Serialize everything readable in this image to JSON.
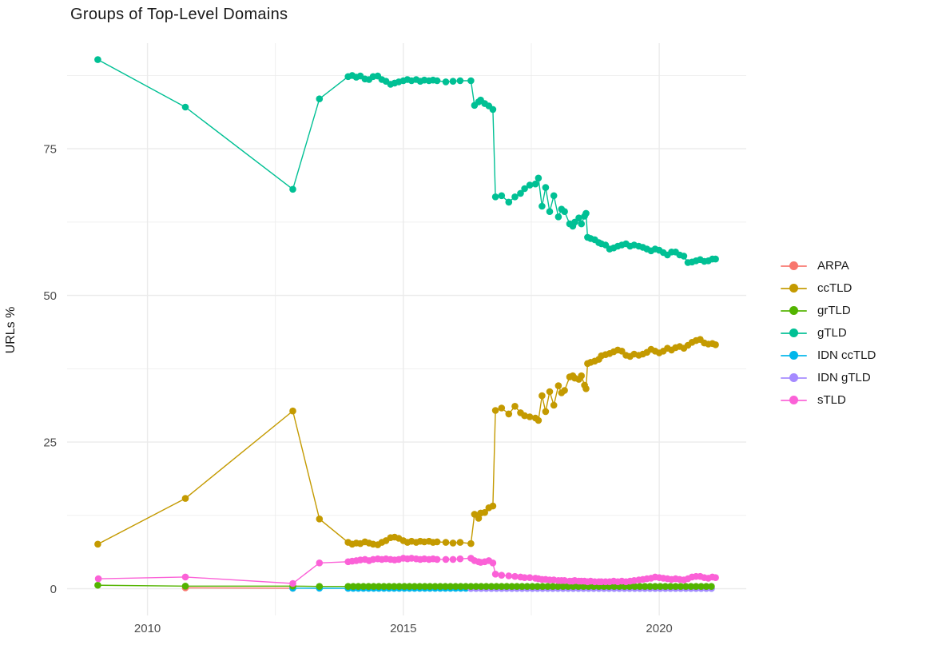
{
  "chart_data": {
    "type": "scatter",
    "title": "Groups of Top-Level Domains",
    "xlabel": "",
    "ylabel": "URLs %",
    "background": "#FFFFFF",
    "grid": true,
    "grid_color": "#EBEBEB",
    "axis_text_color": "#4D4D4D",
    "title_color": "#1A1A1A",
    "legend_position": "right",
    "x_domain": [
      2008.43,
      2021.7
    ],
    "y_domain": [
      -4.55,
      93.0
    ],
    "x_ticks": {
      "major": [
        2010,
        2015,
        2020
      ],
      "minor": [
        2012.5,
        2017.5
      ]
    },
    "y_ticks": {
      "major": [
        0,
        25,
        50,
        75
      ],
      "minor": [
        12.5,
        37.5,
        62.5,
        87.5
      ]
    },
    "series": [
      {
        "name": "ARPA",
        "color": "#F8766D",
        "points": [
          [
            2010.74,
            0.15
          ],
          [
            2012.84,
            0.1
          ]
        ]
      },
      {
        "name": "ccTLD",
        "color": "#C49A00",
        "points": [
          [
            2009.03,
            7.6
          ],
          [
            2010.74,
            15.4
          ],
          [
            2012.84,
            30.3
          ],
          [
            2013.36,
            11.9
          ],
          [
            2013.92,
            7.9
          ],
          [
            2014.0,
            7.6
          ],
          [
            2014.08,
            7.8
          ],
          [
            2014.16,
            7.7
          ],
          [
            2014.25,
            8.0
          ],
          [
            2014.33,
            7.8
          ],
          [
            2014.41,
            7.6
          ],
          [
            2014.5,
            7.5
          ],
          [
            2014.58,
            7.9
          ],
          [
            2014.66,
            8.2
          ],
          [
            2014.75,
            8.7
          ],
          [
            2014.83,
            8.8
          ],
          [
            2014.91,
            8.6
          ],
          [
            2015.0,
            8.2
          ],
          [
            2015.08,
            7.9
          ],
          [
            2015.16,
            8.1
          ],
          [
            2015.25,
            7.9
          ],
          [
            2015.33,
            8.1
          ],
          [
            2015.41,
            8.0
          ],
          [
            2015.5,
            8.1
          ],
          [
            2015.58,
            7.9
          ],
          [
            2015.66,
            8.0
          ],
          [
            2015.83,
            7.9
          ],
          [
            2015.97,
            7.8
          ],
          [
            2016.11,
            7.9
          ],
          [
            2016.32,
            7.7
          ],
          [
            2016.39,
            12.7
          ],
          [
            2016.47,
            12.0
          ],
          [
            2016.51,
            12.9
          ],
          [
            2016.59,
            13.0
          ],
          [
            2016.67,
            13.8
          ],
          [
            2016.75,
            14.1
          ],
          [
            2016.8,
            30.4
          ],
          [
            2016.92,
            30.8
          ],
          [
            2017.06,
            29.8
          ],
          [
            2017.18,
            31.1
          ],
          [
            2017.29,
            30.0
          ],
          [
            2017.37,
            29.5
          ],
          [
            2017.47,
            29.3
          ],
          [
            2017.58,
            29.1
          ],
          [
            2017.64,
            28.7
          ],
          [
            2017.71,
            32.9
          ],
          [
            2017.78,
            30.2
          ],
          [
            2017.86,
            33.6
          ],
          [
            2017.94,
            31.3
          ],
          [
            2018.03,
            34.6
          ],
          [
            2018.09,
            33.4
          ],
          [
            2018.15,
            33.8
          ],
          [
            2018.25,
            36.1
          ],
          [
            2018.31,
            36.3
          ],
          [
            2018.35,
            35.9
          ],
          [
            2018.43,
            35.7
          ],
          [
            2018.48,
            36.3
          ],
          [
            2018.54,
            34.7
          ],
          [
            2018.57,
            34.1
          ],
          [
            2018.6,
            38.4
          ],
          [
            2018.66,
            38.6
          ],
          [
            2018.74,
            38.8
          ],
          [
            2018.82,
            39.1
          ],
          [
            2018.87,
            39.7
          ],
          [
            2018.95,
            39.9
          ],
          [
            2019.03,
            40.1
          ],
          [
            2019.11,
            40.4
          ],
          [
            2019.19,
            40.7
          ],
          [
            2019.27,
            40.5
          ],
          [
            2019.35,
            39.8
          ],
          [
            2019.43,
            39.6
          ],
          [
            2019.51,
            40.0
          ],
          [
            2019.6,
            39.8
          ],
          [
            2019.68,
            40.0
          ],
          [
            2019.76,
            40.3
          ],
          [
            2019.84,
            40.8
          ],
          [
            2019.92,
            40.5
          ],
          [
            2020.0,
            40.2
          ],
          [
            2020.08,
            40.5
          ],
          [
            2020.16,
            41.0
          ],
          [
            2020.24,
            40.7
          ],
          [
            2020.32,
            41.1
          ],
          [
            2020.4,
            41.3
          ],
          [
            2020.48,
            41.0
          ],
          [
            2020.56,
            41.5
          ],
          [
            2020.64,
            42.0
          ],
          [
            2020.72,
            42.3
          ],
          [
            2020.8,
            42.5
          ],
          [
            2020.88,
            41.9
          ],
          [
            2020.96,
            41.7
          ],
          [
            2021.04,
            41.8
          ],
          [
            2021.1,
            41.6
          ]
        ]
      },
      {
        "name": "grTLD",
        "color": "#53B400",
        "points": [
          [
            2009.03,
            0.6
          ],
          [
            2010.74,
            0.45
          ],
          [
            2012.84,
            0.45
          ],
          [
            2013.36,
            0.4
          ]
        ],
        "spans": [
          {
            "from": 2013.92,
            "to": 2021.1,
            "step": 0.1,
            "value": 0.4
          }
        ]
      },
      {
        "name": "gTLD",
        "color": "#00C094",
        "points": [
          [
            2009.03,
            90.2
          ],
          [
            2010.74,
            82.1
          ],
          [
            2012.84,
            68.1
          ],
          [
            2013.36,
            83.5
          ],
          [
            2013.92,
            87.3
          ],
          [
            2014.0,
            87.5
          ],
          [
            2014.08,
            87.2
          ],
          [
            2014.16,
            87.4
          ],
          [
            2014.25,
            86.9
          ],
          [
            2014.33,
            86.8
          ],
          [
            2014.41,
            87.3
          ],
          [
            2014.5,
            87.4
          ],
          [
            2014.58,
            86.8
          ],
          [
            2014.66,
            86.5
          ],
          [
            2014.75,
            86.0
          ],
          [
            2014.83,
            86.2
          ],
          [
            2014.91,
            86.4
          ],
          [
            2015.0,
            86.6
          ],
          [
            2015.08,
            86.8
          ],
          [
            2015.16,
            86.6
          ],
          [
            2015.25,
            86.8
          ],
          [
            2015.33,
            86.5
          ],
          [
            2015.41,
            86.7
          ],
          [
            2015.5,
            86.6
          ],
          [
            2015.58,
            86.7
          ],
          [
            2015.66,
            86.6
          ],
          [
            2015.83,
            86.4
          ],
          [
            2015.97,
            86.5
          ],
          [
            2016.11,
            86.6
          ],
          [
            2016.32,
            86.6
          ],
          [
            2016.39,
            82.4
          ],
          [
            2016.47,
            83.0
          ],
          [
            2016.51,
            83.3
          ],
          [
            2016.59,
            82.7
          ],
          [
            2016.67,
            82.3
          ],
          [
            2016.75,
            81.7
          ],
          [
            2016.8,
            66.8
          ],
          [
            2016.92,
            67.0
          ],
          [
            2017.06,
            65.9
          ],
          [
            2017.18,
            66.8
          ],
          [
            2017.29,
            67.4
          ],
          [
            2017.37,
            68.2
          ],
          [
            2017.47,
            68.8
          ],
          [
            2017.58,
            69.0
          ],
          [
            2017.64,
            70.0
          ],
          [
            2017.71,
            65.2
          ],
          [
            2017.78,
            68.4
          ],
          [
            2017.86,
            64.3
          ],
          [
            2017.94,
            67.0
          ],
          [
            2018.03,
            63.4
          ],
          [
            2018.09,
            64.7
          ],
          [
            2018.15,
            64.3
          ],
          [
            2018.25,
            62.2
          ],
          [
            2018.31,
            61.8
          ],
          [
            2018.35,
            62.5
          ],
          [
            2018.43,
            63.2
          ],
          [
            2018.48,
            62.2
          ],
          [
            2018.54,
            63.5
          ],
          [
            2018.57,
            64.0
          ],
          [
            2018.6,
            59.9
          ],
          [
            2018.66,
            59.7
          ],
          [
            2018.74,
            59.5
          ],
          [
            2018.82,
            59.0
          ],
          [
            2018.87,
            58.8
          ],
          [
            2018.95,
            58.6
          ],
          [
            2019.03,
            57.9
          ],
          [
            2019.11,
            58.1
          ],
          [
            2019.19,
            58.4
          ],
          [
            2019.27,
            58.6
          ],
          [
            2019.35,
            58.8
          ],
          [
            2019.43,
            58.4
          ],
          [
            2019.51,
            58.6
          ],
          [
            2019.6,
            58.4
          ],
          [
            2019.68,
            58.2
          ],
          [
            2019.76,
            57.9
          ],
          [
            2019.84,
            57.6
          ],
          [
            2019.92,
            57.9
          ],
          [
            2020.0,
            57.7
          ],
          [
            2020.08,
            57.3
          ],
          [
            2020.16,
            56.9
          ],
          [
            2020.24,
            57.4
          ],
          [
            2020.32,
            57.4
          ],
          [
            2020.4,
            56.9
          ],
          [
            2020.48,
            56.7
          ],
          [
            2020.56,
            55.6
          ],
          [
            2020.64,
            55.7
          ],
          [
            2020.72,
            55.9
          ],
          [
            2020.8,
            56.1
          ],
          [
            2020.88,
            55.8
          ],
          [
            2020.96,
            55.9
          ],
          [
            2021.04,
            56.2
          ],
          [
            2021.1,
            56.2
          ]
        ]
      },
      {
        "name": "IDN ccTLD",
        "color": "#00B6EB",
        "points": [
          [
            2012.84,
            0.1
          ],
          [
            2013.36,
            0.08
          ]
        ],
        "spans": [
          {
            "from": 2013.92,
            "to": 2021.1,
            "step": 0.1,
            "value": 0.07
          }
        ]
      },
      {
        "name": "IDN gTLD",
        "color": "#A58AFF",
        "spans": [
          {
            "from": 2016.32,
            "to": 2021.1,
            "step": 0.1,
            "value": 0.05
          }
        ]
      },
      {
        "name": "sTLD",
        "color": "#FB61D7",
        "points": [
          [
            2009.04,
            1.7
          ],
          [
            2010.74,
            2.0
          ],
          [
            2012.84,
            0.9
          ],
          [
            2013.36,
            4.4
          ],
          [
            2013.92,
            4.6
          ],
          [
            2014.0,
            4.7
          ],
          [
            2014.08,
            4.8
          ],
          [
            2014.16,
            4.9
          ],
          [
            2014.25,
            5.0
          ],
          [
            2014.33,
            4.8
          ],
          [
            2014.41,
            5.0
          ],
          [
            2014.5,
            5.1
          ],
          [
            2014.58,
            5.0
          ],
          [
            2014.66,
            5.1
          ],
          [
            2014.75,
            5.0
          ],
          [
            2014.83,
            4.9
          ],
          [
            2014.91,
            5.0
          ],
          [
            2015.0,
            5.2
          ],
          [
            2015.08,
            5.1
          ],
          [
            2015.16,
            5.2
          ],
          [
            2015.25,
            5.1
          ],
          [
            2015.33,
            5.0
          ],
          [
            2015.41,
            5.1
          ],
          [
            2015.5,
            5.0
          ],
          [
            2015.58,
            5.1
          ],
          [
            2015.66,
            5.0
          ],
          [
            2015.83,
            5.0
          ],
          [
            2015.97,
            5.0
          ],
          [
            2016.11,
            5.1
          ],
          [
            2016.32,
            5.2
          ],
          [
            2016.39,
            4.8
          ],
          [
            2016.47,
            4.6
          ],
          [
            2016.51,
            4.5
          ],
          [
            2016.59,
            4.6
          ],
          [
            2016.67,
            4.8
          ],
          [
            2016.75,
            4.4
          ],
          [
            2016.8,
            2.5
          ],
          [
            2016.92,
            2.3
          ],
          [
            2017.06,
            2.2
          ],
          [
            2017.18,
            2.1
          ],
          [
            2017.29,
            2.0
          ],
          [
            2017.37,
            1.9
          ],
          [
            2017.47,
            1.9
          ],
          [
            2017.58,
            1.8
          ],
          [
            2017.64,
            1.7
          ],
          [
            2017.71,
            1.6
          ],
          [
            2017.78,
            1.6
          ],
          [
            2017.86,
            1.5
          ],
          [
            2017.94,
            1.5
          ],
          [
            2018.03,
            1.4
          ],
          [
            2018.09,
            1.4
          ],
          [
            2018.15,
            1.4
          ],
          [
            2018.25,
            1.3
          ],
          [
            2018.31,
            1.3
          ],
          [
            2018.35,
            1.4
          ],
          [
            2018.43,
            1.3
          ],
          [
            2018.48,
            1.3
          ],
          [
            2018.54,
            1.3
          ],
          [
            2018.6,
            1.2
          ],
          [
            2018.66,
            1.3
          ],
          [
            2018.74,
            1.2
          ],
          [
            2018.82,
            1.2
          ],
          [
            2018.87,
            1.2
          ],
          [
            2018.95,
            1.2
          ],
          [
            2019.03,
            1.2
          ],
          [
            2019.11,
            1.3
          ],
          [
            2019.19,
            1.2
          ],
          [
            2019.27,
            1.3
          ],
          [
            2019.35,
            1.2
          ],
          [
            2019.43,
            1.3
          ],
          [
            2019.51,
            1.4
          ],
          [
            2019.6,
            1.5
          ],
          [
            2019.68,
            1.6
          ],
          [
            2019.76,
            1.7
          ],
          [
            2019.84,
            1.8
          ],
          [
            2019.92,
            2.0
          ],
          [
            2020.0,
            1.9
          ],
          [
            2020.08,
            1.8
          ],
          [
            2020.16,
            1.7
          ],
          [
            2020.24,
            1.6
          ],
          [
            2020.32,
            1.7
          ],
          [
            2020.4,
            1.6
          ],
          [
            2020.48,
            1.5
          ],
          [
            2020.56,
            1.7
          ],
          [
            2020.64,
            2.0
          ],
          [
            2020.72,
            2.1
          ],
          [
            2020.8,
            2.1
          ],
          [
            2020.88,
            1.9
          ],
          [
            2020.96,
            1.8
          ],
          [
            2021.04,
            2.0
          ],
          [
            2021.1,
            1.9
          ]
        ]
      }
    ]
  }
}
